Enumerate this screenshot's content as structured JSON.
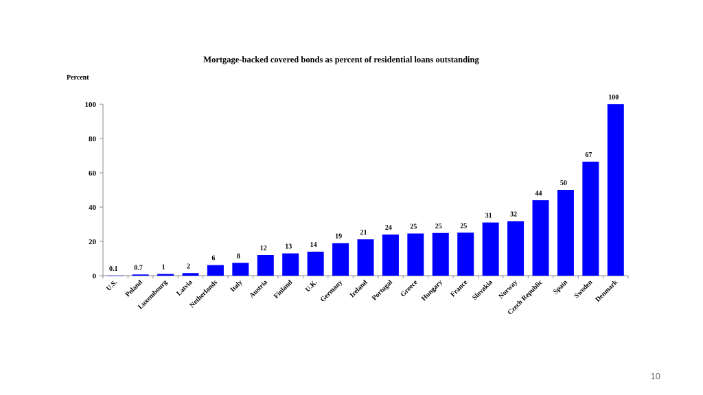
{
  "slide": {
    "page_number": "10"
  },
  "chart_data": {
    "type": "bar",
    "title": "Mortgage-backed covered bonds as percent of residential loans outstanding",
    "ylabel": "Percent",
    "xlabel": "",
    "ylim": [
      0,
      100
    ],
    "yticks": [
      0,
      20,
      40,
      60,
      80,
      100
    ],
    "bar_color": "#0000FF",
    "grid": false,
    "categories": [
      "U.S.",
      "Poland",
      "Luxembourg",
      "Latvia",
      "Netherlands",
      "Italy",
      "Austria",
      "Finland",
      "U.K.",
      "Germany",
      "Ireland",
      "Portugal",
      "Greece",
      "Hungary",
      "France",
      "Slovakia",
      "Norway",
      "Czech Republic",
      "Spain",
      "Sweden",
      "Denmark"
    ],
    "values": [
      0.1,
      0.7,
      1,
      1.5,
      6.2,
      7.5,
      12,
      13,
      14,
      19,
      21.2,
      24,
      24.6,
      24.9,
      25.1,
      31,
      31.8,
      44,
      50,
      66.5,
      100
    ],
    "labels": [
      "0.1",
      "0.7",
      "1",
      "2",
      "6",
      "8",
      "12",
      "13",
      "14",
      "19",
      "21",
      "24",
      "25",
      "25",
      "25",
      "31",
      "32",
      "44",
      "50",
      "67",
      "100"
    ]
  }
}
